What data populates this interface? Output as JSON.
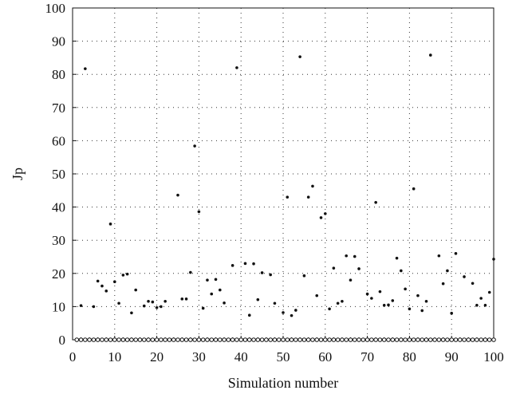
{
  "chart_data": {
    "type": "scatter",
    "title": "",
    "xlabel": "Simulation number",
    "ylabel": "Jp",
    "xlim": [
      0,
      100
    ],
    "ylim": [
      0,
      100
    ],
    "x_ticks": [
      0,
      10,
      20,
      30,
      40,
      50,
      60,
      70,
      80,
      90,
      100
    ],
    "y_ticks": [
      0,
      10,
      20,
      30,
      40,
      50,
      60,
      70,
      80,
      90,
      100
    ],
    "grid": true,
    "legend": "none",
    "marker_color": "#111111",
    "series": [
      {
        "marker": "dot",
        "x": [
          2,
          3,
          5,
          6,
          7,
          8,
          9,
          10,
          11,
          12,
          13,
          14,
          15,
          17,
          18,
          19,
          20,
          21,
          22,
          25,
          26,
          27,
          28,
          29,
          30,
          31,
          32,
          33,
          34,
          35,
          36,
          38,
          39,
          41,
          42,
          43,
          44,
          45,
          47,
          48,
          50,
          51,
          52,
          53,
          54,
          55,
          56,
          57,
          58,
          59,
          60,
          61,
          62,
          63,
          64,
          65,
          66,
          67,
          68,
          70,
          71,
          72,
          73,
          74,
          75,
          76,
          77,
          78,
          79,
          80,
          81,
          82,
          83,
          84,
          85,
          87,
          88,
          89,
          90,
          91,
          93,
          95,
          96,
          97,
          98,
          99,
          100
        ],
        "y": [
          10.3,
          81.7,
          10,
          17.7,
          16.2,
          14.7,
          34.9,
          17.5,
          11,
          19.5,
          19.8,
          8.1,
          15,
          10.2,
          11.6,
          11.4,
          9.7,
          10,
          11.6,
          43.6,
          12.3,
          12.3,
          20.3,
          58.4,
          38.6,
          9.5,
          18,
          13.8,
          18.2,
          15,
          11.1,
          22.4,
          82,
          23,
          7.4,
          22.9,
          12.1,
          20.2,
          19.6,
          11,
          8.2,
          43,
          7.3,
          8.9,
          85.3,
          19.3,
          43,
          46.3,
          13.3,
          36.8,
          38,
          9.3,
          21.6,
          11,
          11.6,
          25.3,
          18,
          25.1,
          21.4,
          13.8,
          12.5,
          41.4,
          14.5,
          10.4,
          10.5,
          11.8,
          24.6,
          20.8,
          15.3,
          9.3,
          45.5,
          13.3,
          8.8,
          11.6,
          85.8,
          25.3,
          16.9,
          20.8,
          8,
          26,
          19,
          17,
          10.4,
          12.5,
          10.4,
          14.3,
          24.3
        ]
      },
      {
        "marker": "hollow-circle",
        "x": [
          1,
          2,
          3,
          4,
          5,
          6,
          7,
          8,
          9,
          10,
          11,
          12,
          13,
          14,
          15,
          16,
          17,
          18,
          19,
          20,
          21,
          22,
          23,
          24,
          25,
          26,
          27,
          28,
          29,
          30,
          31,
          32,
          33,
          34,
          35,
          36,
          37,
          38,
          39,
          40,
          41,
          42,
          43,
          44,
          45,
          46,
          47,
          48,
          49,
          50,
          51,
          52,
          53,
          54,
          55,
          56,
          57,
          58,
          59,
          60,
          61,
          62,
          63,
          64,
          65,
          66,
          67,
          68,
          69,
          70,
          71,
          72,
          73,
          74,
          75,
          76,
          77,
          78,
          79,
          80,
          81,
          82,
          83,
          84,
          85,
          86,
          87,
          88,
          89,
          90,
          91,
          92,
          93,
          94,
          95,
          96,
          97,
          98,
          99,
          100
        ],
        "y": [
          0,
          0,
          0,
          0,
          0,
          0,
          0,
          0,
          0,
          0,
          0,
          0,
          0,
          0,
          0,
          0,
          0,
          0,
          0,
          0,
          0,
          0,
          0,
          0,
          0,
          0,
          0,
          0,
          0,
          0,
          0,
          0,
          0,
          0,
          0,
          0,
          0,
          0,
          0,
          0,
          0,
          0,
          0,
          0,
          0,
          0,
          0,
          0,
          0,
          0,
          0,
          0,
          0,
          0,
          0,
          0,
          0,
          0,
          0,
          0,
          0,
          0,
          0,
          0,
          0,
          0,
          0,
          0,
          0,
          0,
          0,
          0,
          0,
          0,
          0,
          0,
          0,
          0,
          0,
          0,
          0,
          0,
          0,
          0,
          0,
          0,
          0,
          0,
          0,
          0,
          0,
          0,
          0,
          0,
          0,
          0,
          0,
          0,
          0,
          0
        ]
      }
    ]
  }
}
